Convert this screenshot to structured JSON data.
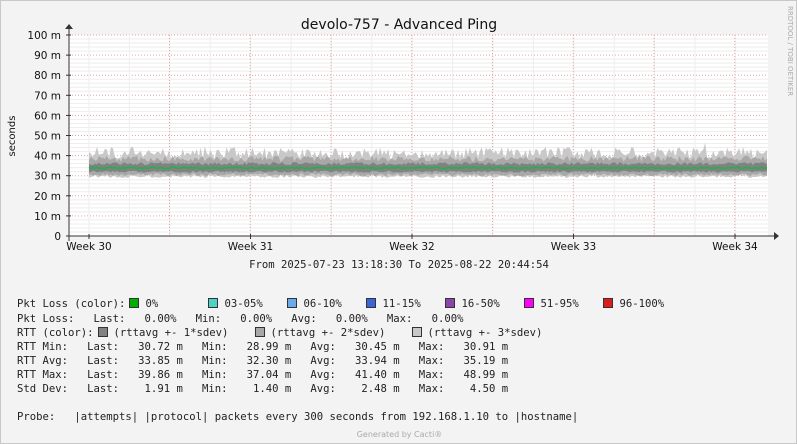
{
  "chart_data": {
    "type": "area",
    "title": "devolo-757 - Advanced Ping",
    "ylabel": "seconds",
    "side_label": "RRDTOOL / TOBI OETIKER",
    "y_ticks": [
      "0",
      "10 m",
      "20 m",
      "30 m",
      "40 m",
      "50 m",
      "60 m",
      "70 m",
      "80 m",
      "90 m",
      "100 m"
    ],
    "ylim": [
      0,
      0.1
    ],
    "x_ticks": [
      "Week 30",
      "Week 31",
      "Week 32",
      "Week 33",
      "Week 34"
    ],
    "range_label": "From 2025-07-23 13:18:30 To 2025-08-22 20:44:54",
    "grid": true,
    "series": [
      {
        "name": "(rttavg +- 3*sdev)",
        "lower": 0.0289,
        "upper": 0.0414,
        "peak": 0.049,
        "color": "#c8c8c8"
      },
      {
        "name": "(rttavg +- 2*sdev)",
        "lower": 0.0305,
        "upper": 0.0385,
        "color": "#a8a8a8"
      },
      {
        "name": "(rttavg +- 1*sdev)",
        "lower": 0.032,
        "upper": 0.036,
        "color": "#828282"
      },
      {
        "name": "rtt avg",
        "value": 0.0339,
        "color": "#22b14c"
      }
    ]
  },
  "legend": {
    "pkt_loss_label": "Pkt Loss (color):",
    "pkt_loss_items": [
      {
        "label": "0%",
        "color": "#00b000"
      },
      {
        "label": "03-05%",
        "color": "#4bd3c8"
      },
      {
        "label": "06-10%",
        "color": "#6aace8"
      },
      {
        "label": "11-15%",
        "color": "#3a64d8"
      },
      {
        "label": "16-50%",
        "color": "#8e44ad"
      },
      {
        "label": "51-95%",
        "color": "#ff00ff"
      },
      {
        "label": "96-100%",
        "color": "#dd1c1c"
      }
    ],
    "pkt_loss_stats": "Pkt Loss:   Last:   0.00%   Min:   0.00%   Avg:   0.00%   Max:   0.00%",
    "rtt_label": "RTT (color):",
    "rtt_items": [
      {
        "label": "(rttavg +- 1*sdev)",
        "color": "#828282"
      },
      {
        "label": "(rttavg +- 2*sdev)",
        "color": "#a8a8a8"
      },
      {
        "label": "(rttavg +- 3*sdev)",
        "color": "#c8c8c8"
      }
    ],
    "rtt_min": "RTT Min:   Last:   30.72 m   Min:   28.99 m   Avg:   30.45 m   Max:   30.91 m",
    "rtt_avg": "RTT Avg:   Last:   33.85 m   Min:   32.30 m   Avg:   33.94 m   Max:   35.19 m",
    "rtt_max": "RTT Max:   Last:   39.86 m   Min:   37.04 m   Avg:   41.40 m   Max:   48.99 m",
    "std_dev": "Std Dev:   Last:    1.91 m   Min:    1.40 m   Avg:    2.48 m   Max:    4.50 m",
    "probe": "Probe:   |attempts| |protocol| packets every 300 seconds from 192.168.1.10 to |hostname|"
  },
  "footer": "Generated by Cacti®"
}
